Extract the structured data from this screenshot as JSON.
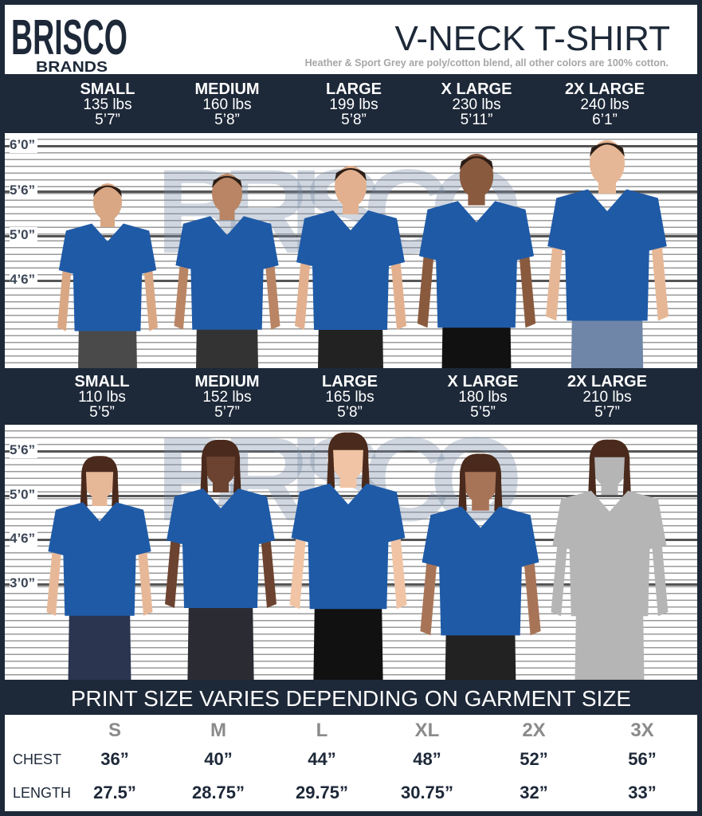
{
  "brand": {
    "name": "BRISCO",
    "sub": "BRANDS"
  },
  "header": {
    "title": "V-NECK T-SHIRT",
    "subtitle": "Heather & Sport Grey are poly/cotton blend, all other colors are 100% cotton."
  },
  "men": {
    "sizes": [
      {
        "name": "SMALL",
        "weight": "135 lbs",
        "height": "5’7”"
      },
      {
        "name": "MEDIUM",
        "weight": "160 lbs",
        "height": "5’8”"
      },
      {
        "name": "LARGE",
        "weight": "199 lbs",
        "height": "5’8”"
      },
      {
        "name": "X LARGE",
        "weight": "230 lbs",
        "height": "5’11”"
      },
      {
        "name": "2X LARGE",
        "weight": "240 lbs",
        "height": "6’1”"
      }
    ],
    "ruler": [
      "6’0”",
      "5’6”",
      "5’0”",
      "4’6”"
    ]
  },
  "women": {
    "sizes": [
      {
        "name": "SMALL",
        "weight": "110 lbs",
        "height": "5’5”"
      },
      {
        "name": "MEDIUM",
        "weight": "152 lbs",
        "height": "5’7”"
      },
      {
        "name": "LARGE",
        "weight": "165 lbs",
        "height": "5’8”"
      },
      {
        "name": "X LARGE",
        "weight": "180 lbs",
        "height": "5’5”"
      },
      {
        "name": "2X LARGE",
        "weight": "210 lbs",
        "height": "5’7”"
      }
    ],
    "ruler": [
      "5’6”",
      "5’0”",
      "4’6”",
      "3’0”"
    ]
  },
  "print_note": "PRINT SIZE VARIES DEPENDING ON GARMENT SIZE",
  "table": {
    "headers": [
      "S",
      "M",
      "L",
      "XL",
      "2X",
      "3X"
    ],
    "rows": [
      {
        "label": "CHEST",
        "values": [
          "36”",
          "40”",
          "44”",
          "48”",
          "52”",
          "56”"
        ]
      },
      {
        "label": "LENGTH",
        "values": [
          "27.5”",
          "28.75”",
          "29.75”",
          "30.75”",
          "32”",
          "33”"
        ]
      }
    ]
  },
  "colors": {
    "navy": "#1d2838",
    "shirt": "#1f5aa6",
    "placeholder_silhouette": "#b5b5b5"
  }
}
